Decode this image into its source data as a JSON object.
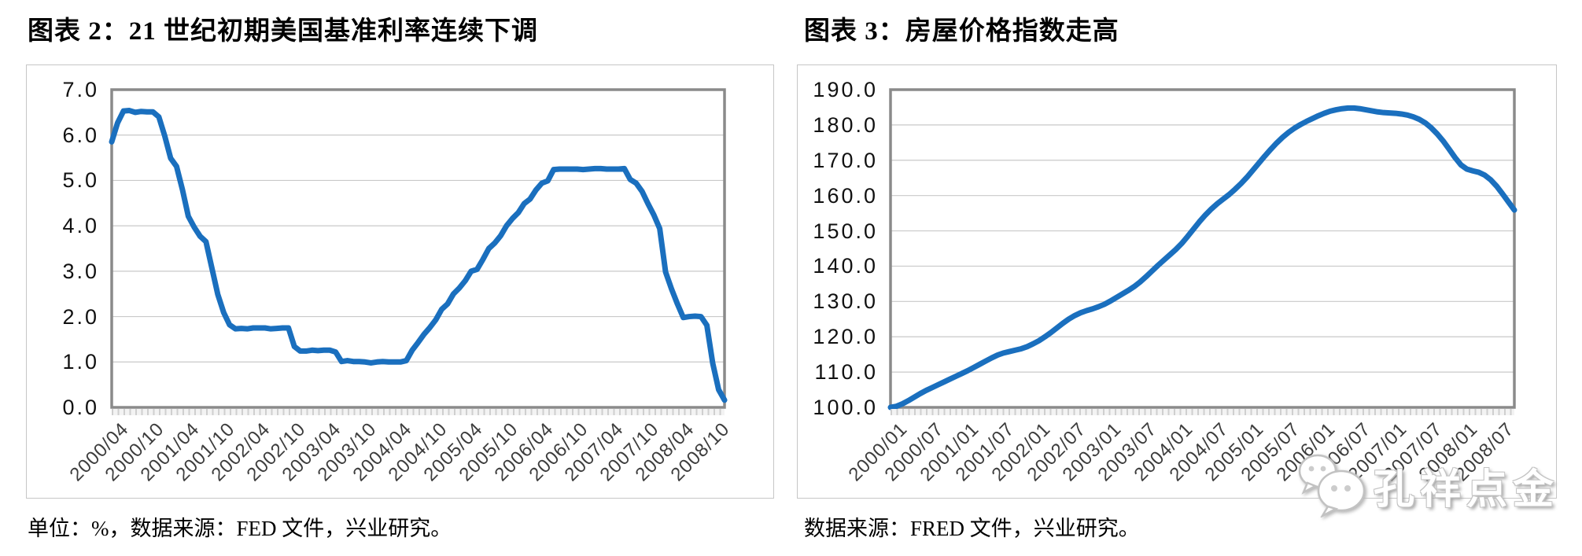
{
  "colors": {
    "line": "#1a6fbe",
    "grid": "#c9c9c9",
    "plot_border": "#8a8a8a",
    "panel_border": "#c6c6c6",
    "axis_text": "#3d3d3d",
    "text": "#000000"
  },
  "watermark": {
    "icon": "wechat-icon",
    "text": "孔祥点金"
  },
  "charts": [
    {
      "title": "图表 2：21 世纪初期美国基准利率连续下调",
      "caption": "单位：%，数据来源：FED 文件，兴业研究。",
      "chart_data": {
        "type": "line",
        "title": "图表 2：21 世纪初期美国基准利率连续下调",
        "x_start": "2000/04",
        "x_interval": "monthly",
        "x_tick_labels": [
          "2000/04",
          "2000/10",
          "2001/04",
          "2001/10",
          "2002/04",
          "2002/10",
          "2003/04",
          "2003/10",
          "2004/04",
          "2004/10",
          "2005/04",
          "2005/10",
          "2006/04",
          "2006/10",
          "2007/04",
          "2007/10",
          "2008/04",
          "2008/10"
        ],
        "x_tick_every_n_points": 6,
        "ylim": [
          0.0,
          7.0
        ],
        "ytick_step": 1.0,
        "ytick_labels": [
          "0.0",
          "1.0",
          "2.0",
          "3.0",
          "4.0",
          "5.0",
          "6.0",
          "7.0"
        ],
        "grid": true,
        "legend_position": "none",
        "series": [
          {
            "values": [
              5.85,
              6.27,
              6.53,
              6.54,
              6.5,
              6.52,
              6.51,
              6.51,
              6.4,
              5.98,
              5.49,
              5.31,
              4.8,
              4.21,
              3.97,
              3.77,
              3.65,
              3.07,
              2.49,
              2.09,
              1.82,
              1.73,
              1.74,
              1.73,
              1.75,
              1.75,
              1.75,
              1.73,
              1.74,
              1.75,
              1.75,
              1.34,
              1.24,
              1.24,
              1.26,
              1.25,
              1.26,
              1.26,
              1.22,
              1.01,
              1.03,
              1.01,
              1.01,
              1.0,
              0.98,
              1.0,
              1.01,
              1.0,
              1.0,
              1.0,
              1.03,
              1.26,
              1.43,
              1.61,
              1.76,
              1.93,
              2.16,
              2.28,
              2.5,
              2.63,
              2.79,
              3.0,
              3.04,
              3.26,
              3.5,
              3.62,
              3.78,
              4.0,
              4.16,
              4.29,
              4.49,
              4.59,
              4.79,
              4.94,
              4.99,
              5.24,
              5.25,
              5.25,
              5.25,
              5.25,
              5.24,
              5.25,
              5.26,
              5.26,
              5.25,
              5.25,
              5.25,
              5.26,
              5.02,
              4.94,
              4.76,
              4.49,
              4.24,
              3.94,
              2.98,
              2.61,
              2.28,
              1.98,
              2.0,
              2.01,
              2.0,
              1.81,
              0.97,
              0.39,
              0.16
            ]
          }
        ]
      }
    },
    {
      "title": "图表 3：房屋价格指数走高",
      "caption": "数据来源：FRED 文件，兴业研究。",
      "chart_data": {
        "type": "line",
        "title": "图表 3：房屋价格指数走高",
        "x_start": "2000/01",
        "x_interval": "monthly",
        "x_tick_labels": [
          "2000/01",
          "2000/07",
          "2001/01",
          "2001/07",
          "2002/01",
          "2002/07",
          "2003/01",
          "2003/07",
          "2004/01",
          "2004/07",
          "2005/01",
          "2005/07",
          "2006/01",
          "2006/07",
          "2007/01",
          "2007/07",
          "2008/01",
          "2008/07"
        ],
        "x_tick_every_n_points": 6,
        "ylim": [
          100.0,
          190.0
        ],
        "ytick_step": 10.0,
        "ytick_labels": [
          "100.0",
          "110.0",
          "120.0",
          "130.0",
          "140.0",
          "150.0",
          "160.0",
          "170.0",
          "180.0",
          "190.0"
        ],
        "grid": true,
        "legend_position": "none",
        "series": [
          {
            "values": [
              100.0,
              100.3,
              101.0,
              101.9,
              102.9,
              103.9,
              104.8,
              105.6,
              106.4,
              107.2,
              108.0,
              108.8,
              109.6,
              110.4,
              111.3,
              112.2,
              113.1,
              114.0,
              114.8,
              115.4,
              115.8,
              116.2,
              116.6,
              117.2,
              118.0,
              118.9,
              120.0,
              121.2,
              122.5,
              123.8,
              125.0,
              126.0,
              126.8,
              127.4,
              127.9,
              128.5,
              129.2,
              130.1,
              131.1,
              132.1,
              133.1,
              134.2,
              135.5,
              137.0,
              138.6,
              140.2,
              141.7,
              143.2,
              144.7,
              146.4,
              148.4,
              150.5,
              152.6,
              154.5,
              156.2,
              157.7,
              159.0,
              160.3,
              161.8,
              163.4,
              165.2,
              167.2,
              169.2,
              171.2,
              173.1,
              174.9,
              176.5,
              177.9,
              179.1,
              180.1,
              181.0,
              181.8,
              182.6,
              183.3,
              183.9,
              184.3,
              184.6,
              184.8,
              184.8,
              184.6,
              184.3,
              184.0,
              183.7,
              183.5,
              183.4,
              183.3,
              183.1,
              182.8,
              182.3,
              181.6,
              180.6,
              179.2,
              177.5,
              175.5,
              173.2,
              170.8,
              168.7,
              167.5,
              167.0,
              166.6,
              165.8,
              164.5,
              162.7,
              160.5,
              158.2,
              155.9
            ]
          }
        ]
      }
    }
  ]
}
